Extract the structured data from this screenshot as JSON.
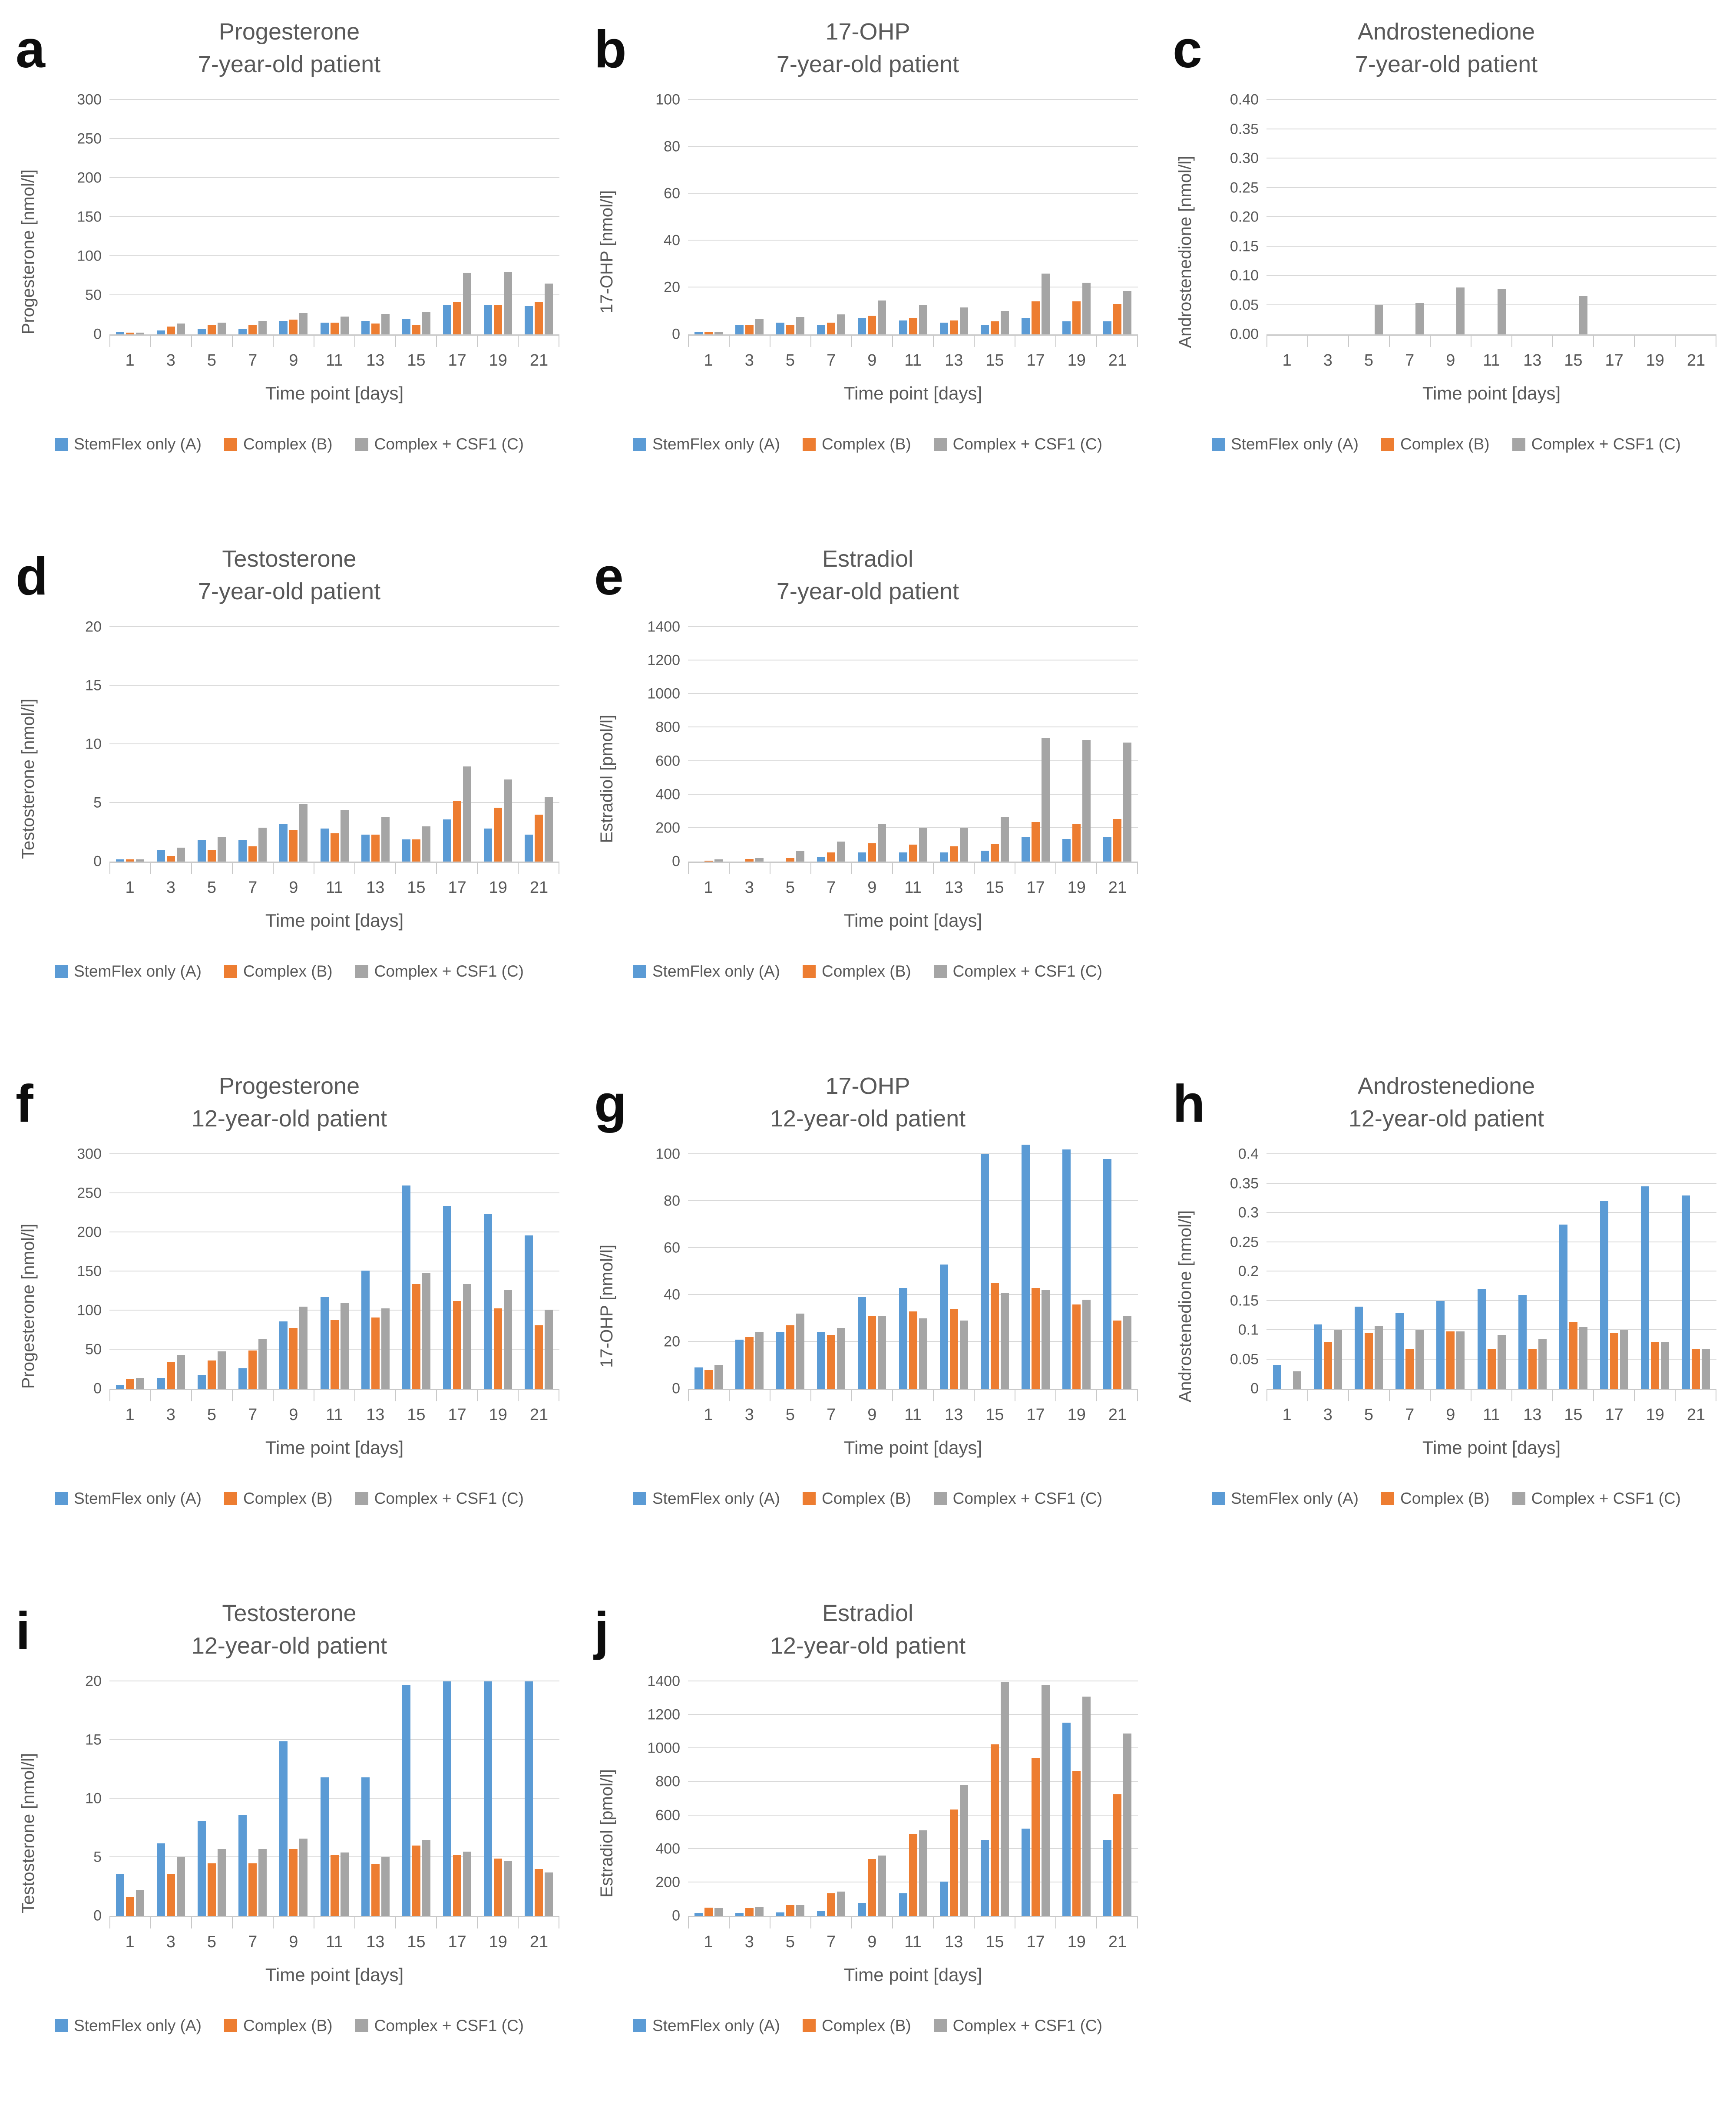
{
  "colors": {
    "series_blue": "#5B9BD5",
    "series_orange": "#ED7D31",
    "series_gray": "#A5A5A5",
    "gridline": "#D9D9D9",
    "axis_line": "#C9C9C9",
    "text": "#595959",
    "panel_letter": "#0D0D0D"
  },
  "x_axis_label": "Time point [days]",
  "legend_labels": [
    "StemFlex only (A)",
    "Complex (B)",
    "Complex + CSF1 (C)"
  ],
  "chart_data": [
    {
      "panel": "a",
      "type": "bar",
      "title_line1": "Progesterone",
      "title_line2": "7-year-old patient",
      "xlabel": "Time point [days]",
      "ylabel": "Progesterone [nmol/l]",
      "ylim": [
        0,
        300
      ],
      "yticks": [
        "0",
        "50",
        "100",
        "150",
        "200",
        "250",
        "300"
      ],
      "grid": true,
      "legend_position": "bottom",
      "categories": [
        "1",
        "3",
        "5",
        "7",
        "9",
        "11",
        "13",
        "15",
        "17",
        "19",
        "21"
      ],
      "series": [
        {
          "name": "StemFlex only (A)",
          "color": "#5B9BD5",
          "values": [
            3,
            5,
            7,
            7,
            17,
            15,
            17,
            20,
            38,
            37,
            36
          ]
        },
        {
          "name": "Complex (B)",
          "color": "#ED7D31",
          "values": [
            2.5,
            10,
            12,
            12,
            19,
            15,
            14,
            12,
            41,
            38,
            41
          ]
        },
        {
          "name": "Complex + CSF1 (C)",
          "color": "#A5A5A5",
          "values": [
            2,
            14,
            15,
            17,
            27,
            23,
            26,
            29,
            79,
            80,
            65
          ]
        }
      ]
    },
    {
      "panel": "b",
      "type": "bar",
      "title_line1": "17-OHP",
      "title_line2": "7-year-old patient",
      "xlabel": "Time point [days]",
      "ylabel": "17-OHP [nmol/l]",
      "ylim": [
        0,
        100
      ],
      "yticks": [
        "0",
        "20",
        "40",
        "60",
        "80",
        "100"
      ],
      "grid": true,
      "legend_position": "bottom",
      "categories": [
        "1",
        "3",
        "5",
        "7",
        "9",
        "11",
        "13",
        "15",
        "17",
        "19",
        "21"
      ],
      "series": [
        {
          "name": "StemFlex only (A)",
          "color": "#5B9BD5",
          "values": [
            1,
            4,
            5,
            4,
            7,
            6,
            5,
            4,
            7,
            5.5,
            5.5
          ]
        },
        {
          "name": "Complex (B)",
          "color": "#ED7D31",
          "values": [
            1,
            4,
            4,
            5,
            8,
            7,
            6,
            5.5,
            14,
            14,
            13
          ]
        },
        {
          "name": "Complex + CSF1 (C)",
          "color": "#A5A5A5",
          "values": [
            1,
            6.5,
            7.5,
            8.5,
            14.5,
            12.5,
            11.5,
            10,
            26,
            22,
            18.5
          ]
        }
      ]
    },
    {
      "panel": "c",
      "type": "bar",
      "title_line1": "Androstenedione",
      "title_line2": "7-year-old patient",
      "xlabel": "Time point [days]",
      "ylabel": "Androstenedione [nmol/l]",
      "ylim": [
        0,
        0.4
      ],
      "yticks": [
        "0.00",
        "0.05",
        "0.10",
        "0.15",
        "0.20",
        "0.25",
        "0.30",
        "0.35",
        "0.40"
      ],
      "grid": true,
      "legend_position": "bottom",
      "categories": [
        "1",
        "3",
        "5",
        "7",
        "9",
        "11",
        "13",
        "15",
        "17",
        "19",
        "21"
      ],
      "series": [
        {
          "name": "StemFlex only (A)",
          "color": "#5B9BD5",
          "values": [
            0,
            0,
            0,
            0,
            0,
            0,
            0,
            0,
            0,
            0,
            0
          ]
        },
        {
          "name": "Complex (B)",
          "color": "#ED7D31",
          "values": [
            0,
            0,
            0,
            0,
            0,
            0,
            0,
            0,
            0,
            0,
            0
          ]
        },
        {
          "name": "Complex + CSF1 (C)",
          "color": "#A5A5A5",
          "values": [
            0,
            0,
            0.05,
            0.053,
            0.08,
            0.078,
            0,
            0.065,
            0,
            0,
            0
          ]
        }
      ]
    },
    {
      "panel": "d",
      "type": "bar",
      "title_line1": "Testosterone",
      "title_line2": "7-year-old patient",
      "xlabel": "Time point [days]",
      "ylabel": "Testosterone [nmol/l]",
      "ylim": [
        0,
        20
      ],
      "yticks": [
        "0",
        "5",
        "10",
        "15",
        "20"
      ],
      "grid": true,
      "legend_position": "bottom",
      "categories": [
        "1",
        "3",
        "5",
        "7",
        "9",
        "11",
        "13",
        "15",
        "17",
        "19",
        "21"
      ],
      "series": [
        {
          "name": "StemFlex only (A)",
          "color": "#5B9BD5",
          "values": [
            0.2,
            1.0,
            1.8,
            1.8,
            3.2,
            2.8,
            2.3,
            1.9,
            3.6,
            2.8,
            2.3
          ]
        },
        {
          "name": "Complex (B)",
          "color": "#ED7D31",
          "values": [
            0.2,
            0.5,
            1.0,
            1.3,
            2.7,
            2.4,
            2.3,
            1.9,
            5.2,
            4.6,
            4.0
          ]
        },
        {
          "name": "Complex + CSF1 (C)",
          "color": "#A5A5A5",
          "values": [
            0.2,
            1.2,
            2.1,
            2.9,
            4.9,
            4.4,
            3.8,
            3.0,
            8.1,
            7.0,
            5.5
          ]
        }
      ]
    },
    {
      "panel": "e",
      "type": "bar",
      "title_line1": "Estradiol",
      "title_line2": "7-year-old patient",
      "xlabel": "Time point [days]",
      "ylabel": "Estradiol [pmol/l]",
      "ylim": [
        0,
        1400
      ],
      "yticks": [
        "0",
        "200",
        "400",
        "600",
        "800",
        "1000",
        "1200",
        "1400"
      ],
      "grid": true,
      "legend_position": "bottom",
      "categories": [
        "1",
        "3",
        "5",
        "7",
        "9",
        "11",
        "13",
        "15",
        "17",
        "19",
        "21"
      ],
      "series": [
        {
          "name": "StemFlex only (A)",
          "color": "#5B9BD5",
          "values": [
            0,
            0,
            0,
            25,
            55,
            55,
            55,
            65,
            145,
            135,
            145
          ]
        },
        {
          "name": "Complex (B)",
          "color": "#ED7D31",
          "values": [
            5,
            15,
            20,
            55,
            110,
            100,
            90,
            105,
            235,
            225,
            255
          ]
        },
        {
          "name": "Complex + CSF1 (C)",
          "color": "#A5A5A5",
          "values": [
            12,
            22,
            63,
            120,
            225,
            200,
            200,
            265,
            740,
            725,
            710
          ]
        }
      ]
    },
    {
      "panel": "f",
      "type": "bar",
      "title_line1": "Progesterone",
      "title_line2": "12-year-old patient",
      "xlabel": "Time point [days]",
      "ylabel": "Progesterone [nmol/l]",
      "ylim": [
        0,
        300
      ],
      "yticks": [
        "0",
        "50",
        "100",
        "150",
        "200",
        "250",
        "300"
      ],
      "grid": true,
      "legend_position": "bottom",
      "categories": [
        "1",
        "3",
        "5",
        "7",
        "9",
        "11",
        "13",
        "15",
        "17",
        "19",
        "21"
      ],
      "series": [
        {
          "name": "StemFlex only (A)",
          "color": "#5B9BD5",
          "values": [
            5,
            14,
            17,
            26,
            86,
            117,
            151,
            260,
            234,
            224,
            196
          ]
        },
        {
          "name": "Complex (B)",
          "color": "#ED7D31",
          "values": [
            12,
            34,
            36,
            49,
            78,
            88,
            91,
            134,
            112,
            103,
            81
          ]
        },
        {
          "name": "Complex + CSF1 (C)",
          "color": "#A5A5A5",
          "values": [
            14,
            43,
            48,
            64,
            105,
            110,
            103,
            148,
            134,
            126,
            101
          ]
        }
      ]
    },
    {
      "panel": "g",
      "type": "bar",
      "title_line1": "17-OHP",
      "title_line2": "12-year-old patient",
      "xlabel": "Time point [days]",
      "ylabel": "17-OHP [nmol/l]",
      "ylim": [
        0,
        100
      ],
      "yticks": [
        "0",
        "20",
        "40",
        "60",
        "80",
        "100"
      ],
      "grid": true,
      "legend_position": "bottom",
      "categories": [
        "1",
        "3",
        "5",
        "7",
        "9",
        "11",
        "13",
        "15",
        "17",
        "19",
        "21"
      ],
      "series": [
        {
          "name": "StemFlex only (A)",
          "color": "#5B9BD5",
          "values": [
            9,
            21,
            24,
            24,
            39,
            43,
            53,
            100,
            104,
            102,
            98
          ]
        },
        {
          "name": "Complex (B)",
          "color": "#ED7D31",
          "values": [
            8,
            22,
            27,
            23,
            31,
            33,
            34,
            45,
            43,
            36,
            29
          ]
        },
        {
          "name": "Complex + CSF1 (C)",
          "color": "#A5A5A5",
          "values": [
            10,
            24,
            32,
            26,
            31,
            30,
            29,
            41,
            42,
            38,
            31
          ]
        }
      ]
    },
    {
      "panel": "h",
      "type": "bar",
      "title_line1": "Androstenedione",
      "title_line2": "12-year-old patient",
      "xlabel": "Time point [days]",
      "ylabel": "Androstenedione [nmol/l]",
      "ylim": [
        0,
        0.4
      ],
      "yticks": [
        "0",
        "0.05",
        "0.1",
        "0.15",
        "0.2",
        "0.25",
        "0.3",
        "0.35",
        "0.4"
      ],
      "grid": true,
      "legend_position": "bottom",
      "categories": [
        "1",
        "3",
        "5",
        "7",
        "9",
        "11",
        "13",
        "15",
        "17",
        "19",
        "21"
      ],
      "series": [
        {
          "name": "StemFlex only (A)",
          "color": "#5B9BD5",
          "values": [
            0.04,
            0.11,
            0.14,
            0.13,
            0.15,
            0.17,
            0.16,
            0.28,
            0.32,
            0.345,
            0.33
          ]
        },
        {
          "name": "Complex (B)",
          "color": "#ED7D31",
          "values": [
            0,
            0.08,
            0.095,
            0.068,
            0.098,
            0.068,
            0.068,
            0.113,
            0.095,
            0.08,
            0.068
          ]
        },
        {
          "name": "Complex + CSF1 (C)",
          "color": "#A5A5A5",
          "values": [
            0.03,
            0.1,
            0.107,
            0.1,
            0.098,
            0.092,
            0.085,
            0.105,
            0.1,
            0.08,
            0.068
          ]
        }
      ]
    },
    {
      "panel": "i",
      "type": "bar",
      "title_line1": "Testosterone",
      "title_line2": "12-year-old patient",
      "xlabel": "Time point [days]",
      "ylabel": "Testosterone [nmol/l]",
      "ylim": [
        0,
        20
      ],
      "yticks": [
        "0",
        "5",
        "10",
        "15",
        "20"
      ],
      "grid": true,
      "legend_position": "bottom",
      "categories": [
        "1",
        "3",
        "5",
        "7",
        "9",
        "11",
        "13",
        "15",
        "17",
        "19",
        "21"
      ],
      "series": [
        {
          "name": "StemFlex only (A)",
          "color": "#5B9BD5",
          "values": [
            3.6,
            6.2,
            8.1,
            8.6,
            14.9,
            11.8,
            11.8,
            19.7,
            20,
            20,
            20
          ]
        },
        {
          "name": "Complex (B)",
          "color": "#ED7D31",
          "values": [
            1.6,
            3.6,
            4.5,
            4.5,
            5.7,
            5.2,
            4.4,
            6.0,
            5.2,
            4.9,
            4.0
          ]
        },
        {
          "name": "Complex + CSF1 (C)",
          "color": "#A5A5A5",
          "values": [
            2.2,
            5.0,
            5.7,
            5.7,
            6.6,
            5.4,
            5.0,
            6.5,
            5.5,
            4.7,
            3.7
          ]
        }
      ]
    },
    {
      "panel": "j",
      "type": "bar",
      "title_line1": "Estradiol",
      "title_line2": "12-year-old patient",
      "xlabel": "Time point [days]",
      "ylabel": "Estradiol [pmol/l]",
      "ylim": [
        0,
        1400
      ],
      "yticks": [
        "0",
        "200",
        "400",
        "600",
        "800",
        "1000",
        "1200",
        "1400"
      ],
      "grid": true,
      "legend_position": "bottom",
      "categories": [
        "1",
        "3",
        "5",
        "7",
        "9",
        "11",
        "13",
        "15",
        "17",
        "19",
        "21"
      ],
      "series": [
        {
          "name": "StemFlex only (A)",
          "color": "#5B9BD5",
          "values": [
            15,
            18,
            20,
            28,
            78,
            135,
            205,
            455,
            520,
            1155,
            455
          ]
        },
        {
          "name": "Complex (B)",
          "color": "#ED7D31",
          "values": [
            50,
            48,
            65,
            135,
            340,
            490,
            635,
            1025,
            945,
            865,
            725
          ]
        },
        {
          "name": "Complex + CSF1 (C)",
          "color": "#A5A5A5",
          "values": [
            48,
            55,
            65,
            145,
            360,
            510,
            780,
            1395,
            1380,
            1310,
            1090
          ]
        }
      ]
    }
  ]
}
